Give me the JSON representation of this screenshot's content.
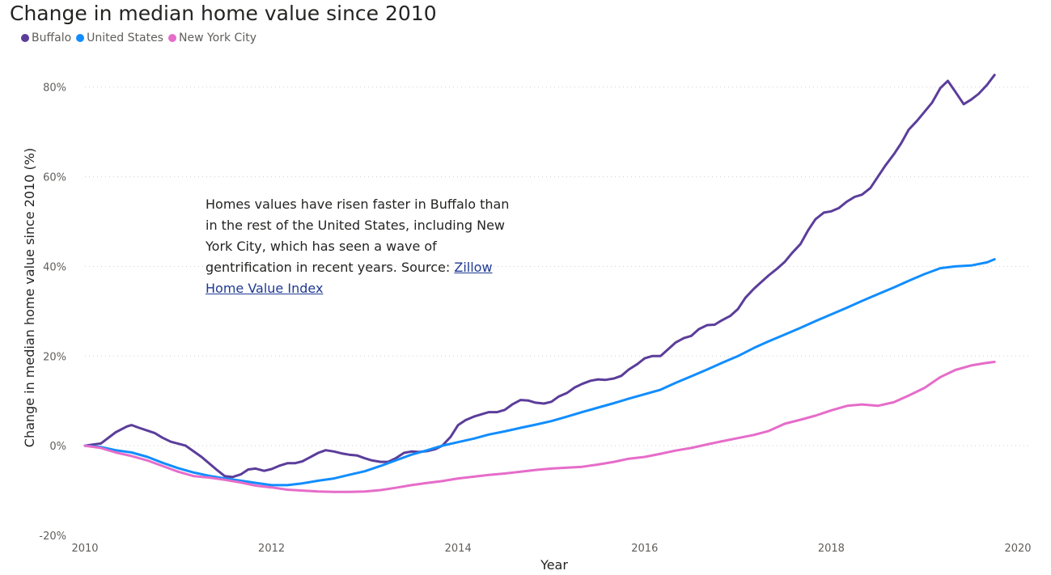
{
  "chart_data": {
    "type": "line",
    "title": "Change in median home value since 2010",
    "xlabel": "Year",
    "ylabel": "Change in median home value since 2010 (%)",
    "xlim": [
      2010,
      2020
    ],
    "ylim": [
      -20,
      85
    ],
    "x_ticks": [
      "2010",
      "2012",
      "2014",
      "2016",
      "2018",
      "2020"
    ],
    "y_ticks": [
      "-20%",
      "0%",
      "20%",
      "40%",
      "60%",
      "80%"
    ],
    "grid": "horizontal dotted",
    "legend_position": "top-left",
    "annotation": {
      "text": "Homes values have risen faster in Buffalo than in the rest of the United States, including New York City, which has seen a wave of gentrification in recent years. Source: ",
      "link_text": "Zillow Home Value Index"
    },
    "series": [
      {
        "name": "Buffalo",
        "color": "#5b3d9a",
        "points": [
          [
            2010.0,
            0
          ],
          [
            2010.17,
            0.5
          ],
          [
            2010.33,
            3
          ],
          [
            2010.45,
            4.3
          ],
          [
            2010.5,
            4.6
          ],
          [
            2010.58,
            4
          ],
          [
            2010.75,
            2.8
          ],
          [
            2010.83,
            1.8
          ],
          [
            2010.92,
            0.9
          ],
          [
            2011.08,
            0
          ],
          [
            2011.25,
            -2.5
          ],
          [
            2011.42,
            -5.5
          ],
          [
            2011.5,
            -6.8
          ],
          [
            2011.58,
            -7
          ],
          [
            2011.67,
            -6.4
          ],
          [
            2011.75,
            -5.3
          ],
          [
            2011.83,
            -5.1
          ],
          [
            2011.92,
            -5.6
          ],
          [
            2012.0,
            -5.2
          ],
          [
            2012.08,
            -4.5
          ],
          [
            2012.17,
            -3.9
          ],
          [
            2012.25,
            -3.9
          ],
          [
            2012.33,
            -3.5
          ],
          [
            2012.42,
            -2.5
          ],
          [
            2012.5,
            -1.6
          ],
          [
            2012.58,
            -1
          ],
          [
            2012.67,
            -1.3
          ],
          [
            2012.75,
            -1.7
          ],
          [
            2012.83,
            -2
          ],
          [
            2012.92,
            -2.2
          ],
          [
            2013.0,
            -2.8
          ],
          [
            2013.08,
            -3.3
          ],
          [
            2013.17,
            -3.6
          ],
          [
            2013.25,
            -3.6
          ],
          [
            2013.33,
            -2.8
          ],
          [
            2013.42,
            -1.6
          ],
          [
            2013.5,
            -1.3
          ],
          [
            2013.58,
            -1.4
          ],
          [
            2013.67,
            -1.2
          ],
          [
            2013.75,
            -0.8
          ],
          [
            2013.83,
            0
          ],
          [
            2013.92,
            2
          ],
          [
            2014.0,
            4.6
          ],
          [
            2014.08,
            5.7
          ],
          [
            2014.17,
            6.5
          ],
          [
            2014.25,
            7
          ],
          [
            2014.33,
            7.5
          ],
          [
            2014.42,
            7.5
          ],
          [
            2014.5,
            8
          ],
          [
            2014.58,
            9.2
          ],
          [
            2014.67,
            10.2
          ],
          [
            2014.75,
            10.1
          ],
          [
            2014.83,
            9.6
          ],
          [
            2014.92,
            9.4
          ],
          [
            2015.0,
            9.8
          ],
          [
            2015.08,
            11
          ],
          [
            2015.17,
            11.8
          ],
          [
            2015.25,
            13
          ],
          [
            2015.33,
            13.8
          ],
          [
            2015.42,
            14.5
          ],
          [
            2015.5,
            14.8
          ],
          [
            2015.58,
            14.7
          ],
          [
            2015.67,
            15
          ],
          [
            2015.75,
            15.6
          ],
          [
            2015.83,
            17
          ],
          [
            2015.92,
            18.2
          ],
          [
            2016.0,
            19.5
          ],
          [
            2016.08,
            20
          ],
          [
            2016.17,
            20
          ],
          [
            2016.25,
            21.5
          ],
          [
            2016.33,
            23
          ],
          [
            2016.42,
            24
          ],
          [
            2016.5,
            24.5
          ],
          [
            2016.58,
            26
          ],
          [
            2016.67,
            26.9
          ],
          [
            2016.75,
            27
          ],
          [
            2016.83,
            28
          ],
          [
            2016.92,
            29
          ],
          [
            2017.0,
            30.5
          ],
          [
            2017.08,
            33
          ],
          [
            2017.17,
            35
          ],
          [
            2017.25,
            36.5
          ],
          [
            2017.33,
            38
          ],
          [
            2017.42,
            39.5
          ],
          [
            2017.5,
            41
          ],
          [
            2017.58,
            43
          ],
          [
            2017.67,
            45
          ],
          [
            2017.75,
            48
          ],
          [
            2017.83,
            50.5
          ],
          [
            2017.92,
            52
          ],
          [
            2018.0,
            52.3
          ],
          [
            2018.08,
            53
          ],
          [
            2018.17,
            54.5
          ],
          [
            2018.25,
            55.5
          ],
          [
            2018.33,
            56
          ],
          [
            2018.42,
            57.5
          ],
          [
            2018.5,
            60
          ],
          [
            2018.58,
            62.5
          ],
          [
            2018.67,
            65
          ],
          [
            2018.75,
            67.5
          ],
          [
            2018.83,
            70.5
          ],
          [
            2018.92,
            72.5
          ],
          [
            2019.0,
            74.5
          ],
          [
            2019.08,
            76.5
          ],
          [
            2019.17,
            79.8
          ],
          [
            2019.25,
            81.4
          ],
          [
            2019.33,
            79
          ],
          [
            2019.42,
            76.2
          ],
          [
            2019.5,
            77.2
          ],
          [
            2019.58,
            78.5
          ],
          [
            2019.67,
            80.5
          ],
          [
            2019.75,
            82.7
          ]
        ]
      },
      {
        "name": "United States",
        "color": "#118dff",
        "points": [
          [
            2010.0,
            0
          ],
          [
            2010.17,
            -0.3
          ],
          [
            2010.33,
            -1
          ],
          [
            2010.5,
            -1.5
          ],
          [
            2010.67,
            -2.5
          ],
          [
            2010.83,
            -3.8
          ],
          [
            2011.0,
            -5
          ],
          [
            2011.17,
            -6
          ],
          [
            2011.33,
            -6.7
          ],
          [
            2011.5,
            -7.3
          ],
          [
            2011.67,
            -7.8
          ],
          [
            2011.83,
            -8.3
          ],
          [
            2012.0,
            -8.8
          ],
          [
            2012.17,
            -8.8
          ],
          [
            2012.33,
            -8.4
          ],
          [
            2012.5,
            -7.8
          ],
          [
            2012.67,
            -7.3
          ],
          [
            2012.83,
            -6.5
          ],
          [
            2013.0,
            -5.7
          ],
          [
            2013.17,
            -4.5
          ],
          [
            2013.33,
            -3.3
          ],
          [
            2013.5,
            -2
          ],
          [
            2013.67,
            -1
          ],
          [
            2013.83,
            0
          ],
          [
            2014.0,
            0.8
          ],
          [
            2014.17,
            1.6
          ],
          [
            2014.33,
            2.5
          ],
          [
            2014.5,
            3.2
          ],
          [
            2014.67,
            4
          ],
          [
            2014.83,
            4.7
          ],
          [
            2015.0,
            5.5
          ],
          [
            2015.17,
            6.5
          ],
          [
            2015.33,
            7.5
          ],
          [
            2015.5,
            8.5
          ],
          [
            2015.67,
            9.5
          ],
          [
            2015.83,
            10.5
          ],
          [
            2016.0,
            11.5
          ],
          [
            2016.17,
            12.5
          ],
          [
            2016.33,
            14
          ],
          [
            2016.5,
            15.5
          ],
          [
            2016.67,
            17
          ],
          [
            2016.83,
            18.5
          ],
          [
            2017.0,
            20
          ],
          [
            2017.17,
            21.8
          ],
          [
            2017.33,
            23.3
          ],
          [
            2017.5,
            24.8
          ],
          [
            2017.67,
            26.3
          ],
          [
            2017.83,
            27.8
          ],
          [
            2018.0,
            29.3
          ],
          [
            2018.17,
            30.8
          ],
          [
            2018.33,
            32.3
          ],
          [
            2018.5,
            33.8
          ],
          [
            2018.67,
            35.3
          ],
          [
            2018.83,
            36.8
          ],
          [
            2019.0,
            38.3
          ],
          [
            2019.17,
            39.6
          ],
          [
            2019.33,
            40
          ],
          [
            2019.5,
            40.2
          ],
          [
            2019.67,
            40.9
          ],
          [
            2019.75,
            41.6
          ]
        ]
      },
      {
        "name": "New York City",
        "color": "#e66cc9",
        "points": [
          [
            2010.0,
            0
          ],
          [
            2010.17,
            -0.5
          ],
          [
            2010.33,
            -1.5
          ],
          [
            2010.5,
            -2.3
          ],
          [
            2010.67,
            -3.3
          ],
          [
            2010.83,
            -4.5
          ],
          [
            2011.0,
            -5.8
          ],
          [
            2011.17,
            -6.8
          ],
          [
            2011.33,
            -7.1
          ],
          [
            2011.5,
            -7.6
          ],
          [
            2011.67,
            -8.2
          ],
          [
            2011.83,
            -8.9
          ],
          [
            2012.0,
            -9.3
          ],
          [
            2012.17,
            -9.8
          ],
          [
            2012.33,
            -10
          ],
          [
            2012.5,
            -10.2
          ],
          [
            2012.67,
            -10.3
          ],
          [
            2012.83,
            -10.3
          ],
          [
            2013.0,
            -10.2
          ],
          [
            2013.17,
            -9.9
          ],
          [
            2013.33,
            -9.4
          ],
          [
            2013.5,
            -8.8
          ],
          [
            2013.67,
            -8.3
          ],
          [
            2013.83,
            -7.9
          ],
          [
            2014.0,
            -7.3
          ],
          [
            2014.17,
            -6.9
          ],
          [
            2014.33,
            -6.5
          ],
          [
            2014.5,
            -6.2
          ],
          [
            2014.67,
            -5.8
          ],
          [
            2014.83,
            -5.4
          ],
          [
            2015.0,
            -5.1
          ],
          [
            2015.17,
            -4.9
          ],
          [
            2015.33,
            -4.7
          ],
          [
            2015.5,
            -4.2
          ],
          [
            2015.67,
            -3.6
          ],
          [
            2015.83,
            -2.9
          ],
          [
            2016.0,
            -2.5
          ],
          [
            2016.17,
            -1.8
          ],
          [
            2016.33,
            -1.1
          ],
          [
            2016.5,
            -0.5
          ],
          [
            2016.67,
            0.3
          ],
          [
            2016.83,
            1
          ],
          [
            2017.0,
            1.7
          ],
          [
            2017.17,
            2.4
          ],
          [
            2017.33,
            3.3
          ],
          [
            2017.5,
            4.9
          ],
          [
            2017.67,
            5.8
          ],
          [
            2017.83,
            6.7
          ],
          [
            2018.0,
            7.9
          ],
          [
            2018.17,
            8.9
          ],
          [
            2018.33,
            9.2
          ],
          [
            2018.5,
            8.9
          ],
          [
            2018.67,
            9.7
          ],
          [
            2018.83,
            11.2
          ],
          [
            2019.0,
            12.9
          ],
          [
            2019.17,
            15.3
          ],
          [
            2019.33,
            16.9
          ],
          [
            2019.5,
            17.9
          ],
          [
            2019.67,
            18.5
          ],
          [
            2019.75,
            18.7
          ]
        ]
      }
    ]
  }
}
